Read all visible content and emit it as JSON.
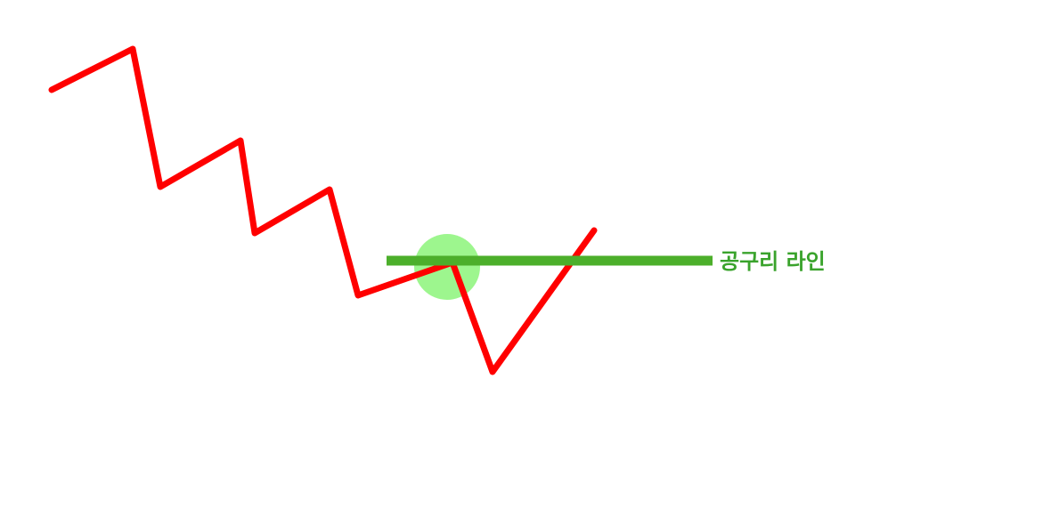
{
  "diagram": {
    "line_label": "공구리 라인",
    "colors": {
      "price_path": "#ff0000",
      "support_line": "#4caf2b",
      "highlight_circle": "#8cf57a",
      "label_text": "#3aa32c"
    }
  }
}
